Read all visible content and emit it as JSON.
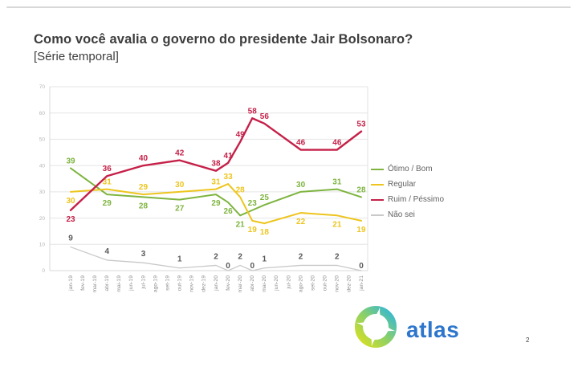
{
  "slide": {
    "title": "Como você avalia o governo do presidente Jair Bolsonaro?",
    "subtitle": "[Série temporal]",
    "page_number": "2",
    "logo_text": "atlas"
  },
  "chart_data": {
    "type": "line",
    "title": "Como você avalia o governo do presidente Jair Bolsonaro? [Série temporal]",
    "x": [
      "jan-19",
      "fev-19",
      "mar-19",
      "abr-19",
      "mai-19",
      "jun-19",
      "jul-19",
      "ago-19",
      "set-19",
      "out-19",
      "nov-19",
      "dez-19",
      "jan-20",
      "fev-20",
      "mar-20",
      "abr-20",
      "mai-20",
      "jun-20",
      "jul-20",
      "ago-20",
      "set-20",
      "out-20",
      "nov-20",
      "dez-20",
      "jan-21"
    ],
    "data_months": [
      "jan-19",
      "abr-19",
      "jul-19",
      "out-19",
      "jan-20",
      "fev-20",
      "mar-20",
      "abr-20",
      "mai-20",
      "ago-20",
      "nov-20",
      "jan-21"
    ],
    "series": [
      {
        "name": "Ótimo / Bom",
        "color": "#7eb43f",
        "label_color": "#7eb43f",
        "values": [
          39,
          29,
          28,
          27,
          29,
          26,
          21,
          23,
          25,
          30,
          31,
          28
        ]
      },
      {
        "name": "Regular",
        "color": "#edc51e",
        "label_color": "#edc51e",
        "values": [
          30,
          31,
          29,
          30,
          31,
          33,
          28,
          19,
          18,
          22,
          21,
          19
        ]
      },
      {
        "name": "Ruim / Péssimo",
        "color": "#c52048",
        "label_color": "#c52048",
        "values": [
          23,
          36,
          40,
          42,
          38,
          41,
          49,
          58,
          56,
          46,
          46,
          53
        ]
      },
      {
        "name": "Não sei",
        "color": "#c9c9c9",
        "label_color": "#595959",
        "values": [
          9,
          4,
          3,
          1,
          2,
          0,
          2,
          0,
          1,
          2,
          2,
          0
        ]
      }
    ],
    "ylim": [
      0,
      70
    ],
    "yticks": [
      0,
      10,
      20,
      30,
      40,
      50,
      60,
      70
    ],
    "grid": "horizontal",
    "legend_position": "right"
  }
}
